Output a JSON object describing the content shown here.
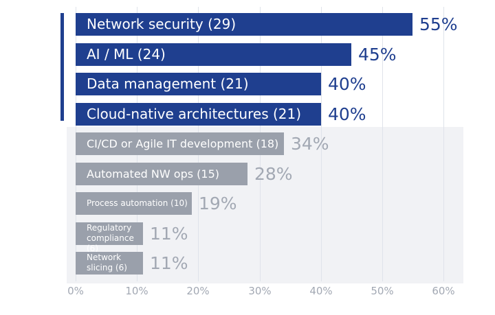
{
  "chart_data": {
    "type": "bar",
    "orientation": "horizontal",
    "categories": [
      "Network security (29)",
      "AI / ML (24)",
      "Data management (21)",
      "Cloud-native architectures (21)",
      "CI/CD or Agile IT development (18)",
      "Automated NW ops (15)",
      "Process automation (10)",
      "Regulatory compliance (6)",
      "Network slicing (6)"
    ],
    "values": [
      55,
      45,
      40,
      40,
      34,
      28,
      19,
      11,
      11
    ],
    "value_labels": [
      "55%",
      "45%",
      "40%",
      "40%",
      "34%",
      "28%",
      "19%",
      "11%",
      "11%"
    ],
    "highlighted": [
      true,
      true,
      true,
      true,
      false,
      false,
      false,
      false,
      false
    ],
    "xlim": [
      0,
      60
    ],
    "xticks": [
      "0%",
      "10%",
      "20%",
      "30%",
      "40%",
      "50%",
      "60%"
    ],
    "title": "",
    "xlabel": "",
    "ylabel": ""
  },
  "colors": {
    "highlight_bar": "#1f3f8f",
    "muted_bar": "#9aa0ab",
    "highlight_pct": "#1f3f8f",
    "muted_pct": "#a2a8b3",
    "panel": "#f1f2f5"
  }
}
